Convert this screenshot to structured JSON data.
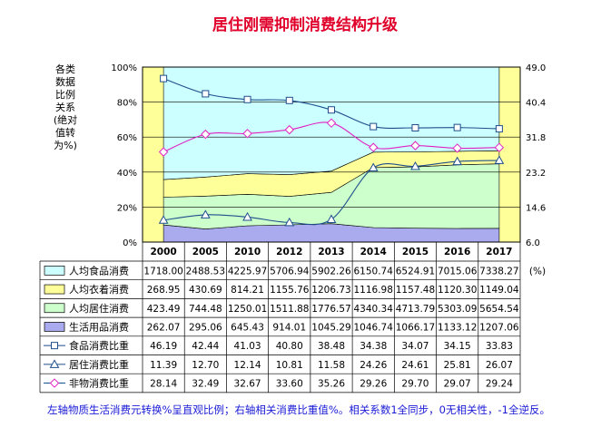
{
  "chart_data": {
    "type": "area",
    "title": "居住刚需抑制消费结构升级",
    "ylabel_left": [
      "各类",
      "数据",
      "比例",
      "关系",
      "(绝对",
      "值转",
      "为%)"
    ],
    "unit_right": "(%)",
    "categories": [
      "2000",
      "2005",
      "2010",
      "2012",
      "2013",
      "2014",
      "2015",
      "2016",
      "2017"
    ],
    "left_axis": {
      "min": 0,
      "max": 100,
      "ticks": [
        "0%",
        "20%",
        "40%",
        "60%",
        "80%",
        "100%"
      ]
    },
    "right_axis": {
      "min": 6.0,
      "max": 49.0,
      "ticks": [
        "6.0",
        "14.6",
        "23.2",
        "31.8",
        "40.4",
        "49.0"
      ]
    },
    "stacked_series": [
      {
        "name": "生活用品消费",
        "color": "#aaaaee",
        "values": [
          262.07,
          295.06,
          645.43,
          914.01,
          1045.29,
          1046.74,
          1066.17,
          1133.12,
          1207.06
        ]
      },
      {
        "name": "人均居住消费",
        "color": "#ccffcc",
        "values": [
          423.49,
          744.48,
          1250.01,
          1511.88,
          1776.57,
          4340.34,
          4713.79,
          5303.09,
          5654.54
        ]
      },
      {
        "name": "人均衣着消费",
        "color": "#ffff99",
        "values": [
          268.95,
          430.69,
          814.21,
          1155.76,
          1206.73,
          1116.98,
          1157.48,
          1120.3,
          1149.04
        ]
      },
      {
        "name": "人均食品消费",
        "color": "#ccffff",
        "values": [
          1718.0,
          2488.53,
          4225.97,
          5706.94,
          5902.26,
          6150.74,
          6524.91,
          7015.06,
          7338.27
        ]
      }
    ],
    "line_series": [
      {
        "name": "食品消费比重",
        "marker": "square",
        "color": "#1f4e8c",
        "values": [
          46.19,
          42.44,
          41.03,
          40.8,
          38.48,
          34.38,
          34.07,
          34.15,
          33.83
        ]
      },
      {
        "name": "居住消费比重",
        "marker": "triangle",
        "color": "#1f4e8c",
        "values": [
          11.39,
          12.7,
          12.14,
          10.81,
          11.58,
          24.26,
          24.61,
          25.81,
          26.07
        ]
      },
      {
        "name": "非物消费比重",
        "marker": "diamond",
        "color": "#e020c0",
        "values": [
          28.14,
          32.49,
          32.67,
          33.6,
          35.26,
          29.26,
          29.7,
          29.07,
          29.24
        ]
      }
    ],
    "table_rows": [
      {
        "label": "人均食品消费",
        "swatch": "#ccffff",
        "values": [
          "1718.00",
          "2488.53",
          "4225.97",
          "5706.94",
          "5902.26",
          "6150.74",
          "6524.91",
          "7015.06",
          "7338.27"
        ]
      },
      {
        "label": "人均衣着消费",
        "swatch": "#ffff99",
        "values": [
          "268.95",
          "430.69",
          "814.21",
          "1155.76",
          "1206.73",
          "1116.98",
          "1157.48",
          "1120.30",
          "1149.04"
        ]
      },
      {
        "label": "人均居住消费",
        "swatch": "#ccffcc",
        "values": [
          "423.49",
          "744.48",
          "1250.01",
          "1511.88",
          "1776.57",
          "4340.34",
          "4713.79",
          "5303.09",
          "5654.54"
        ]
      },
      {
        "label": "生活用品消费",
        "swatch": "#aaaaee",
        "values": [
          "262.07",
          "295.06",
          "645.43",
          "914.01",
          "1045.29",
          "1046.74",
          "1066.17",
          "1133.12",
          "1207.06"
        ]
      },
      {
        "label": "食品消费比重",
        "marker": "square",
        "values": [
          "46.19",
          "42.44",
          "41.03",
          "40.80",
          "38.48",
          "34.38",
          "34.07",
          "34.15",
          "33.83"
        ]
      },
      {
        "label": "居住消费比重",
        "marker": "triangle",
        "values": [
          "11.39",
          "12.70",
          "12.14",
          "10.81",
          "11.58",
          "24.26",
          "24.61",
          "25.81",
          "26.07"
        ]
      },
      {
        "label": "非物消费比重",
        "marker": "diamond",
        "values": [
          "28.14",
          "32.49",
          "32.67",
          "33.60",
          "35.26",
          "29.26",
          "29.70",
          "29.07",
          "29.24"
        ]
      }
    ],
    "footnote": "左轴物质生活消费元转换%呈直观比例；右轴相关消费比重值%。相关系数1全同步，0无相关性，-1全逆反。",
    "colors": {
      "side_panel": "#ffff99",
      "grid": "#000000",
      "title": "#e0002a",
      "note": "#1a1ad6"
    }
  }
}
